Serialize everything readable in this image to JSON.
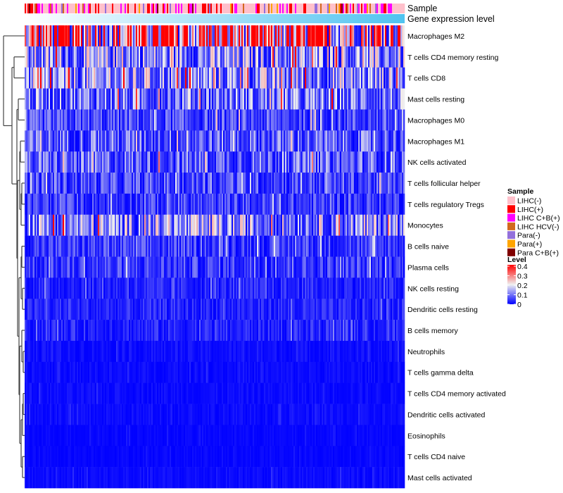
{
  "chart_data": {
    "type": "heatmap",
    "title": "",
    "annotations": [
      {
        "name": "Sample",
        "type": "categorical"
      },
      {
        "name": "Gene expression level",
        "type": "continuous",
        "color_low": "#ffffff",
        "color_high": "#4fc3f0"
      }
    ],
    "rows": [
      {
        "label": "Macrophages M2",
        "mean_level": 0.3
      },
      {
        "label": "T cells CD4 memory resting",
        "mean_level": 0.12
      },
      {
        "label": "T cells CD8",
        "mean_level": 0.12
      },
      {
        "label": "Mast cells resting",
        "mean_level": 0.1
      },
      {
        "label": "Macrophages M0",
        "mean_level": 0.06
      },
      {
        "label": "Macrophages M1",
        "mean_level": 0.08
      },
      {
        "label": "NK cells activated",
        "mean_level": 0.08
      },
      {
        "label": "T cells follicular helper",
        "mean_level": 0.06
      },
      {
        "label": "T cells regulatory  Tregs",
        "mean_level": 0.05
      },
      {
        "label": "Monocytes",
        "mean_level": 0.12
      },
      {
        "label": "B cells naive",
        "mean_level": 0.05
      },
      {
        "label": "Plasma cells",
        "mean_level": 0.05
      },
      {
        "label": "NK cells resting",
        "mean_level": 0.03
      },
      {
        "label": "Dendritic cells resting",
        "mean_level": 0.03
      },
      {
        "label": "B cells memory",
        "mean_level": 0.03
      },
      {
        "label": "Neutrophils",
        "mean_level": 0.012
      },
      {
        "label": "T cells gamma delta",
        "mean_level": 0.01
      },
      {
        "label": "T cells CD4 memory activated",
        "mean_level": 0.01
      },
      {
        "label": "Dendritic cells activated",
        "mean_level": 0.01
      },
      {
        "label": "Eosinophils",
        "mean_level": 0.006
      },
      {
        "label": "T cells CD4 naive",
        "mean_level": 0.006
      },
      {
        "label": "Mast cells activated",
        "mean_level": 0.01
      }
    ],
    "n_columns": 270,
    "legend": {
      "sample_title": "Sample",
      "samples": [
        {
          "label": "LIHC(-)",
          "color": "#ffc0cb",
          "share": 0.62
        },
        {
          "label": "LIHC(+)",
          "color": "#ff0000",
          "share": 0.1
        },
        {
          "label": "LIHC C+B(+)",
          "color": "#ff00ff",
          "share": 0.15
        },
        {
          "label": "LIHC HCV(-)",
          "color": "#d2691e",
          "share": 0.03
        },
        {
          "label": "Para(-)",
          "color": "#9370db",
          "share": 0.05
        },
        {
          "label": "Para(+)",
          "color": "#ffa500",
          "share": 0.04
        },
        {
          "label": "Para C+B(+)",
          "color": "#800000",
          "share": 0.01
        }
      ],
      "level_title": "Level",
      "level_ticks": [
        "0.4",
        "0.3",
        "0.2",
        "0.1",
        "0"
      ],
      "level_range": [
        0,
        0.4
      ],
      "level_colors": [
        "#0000ff",
        "#f0f0f0",
        "#ff0000"
      ],
      "placement": "right"
    }
  }
}
